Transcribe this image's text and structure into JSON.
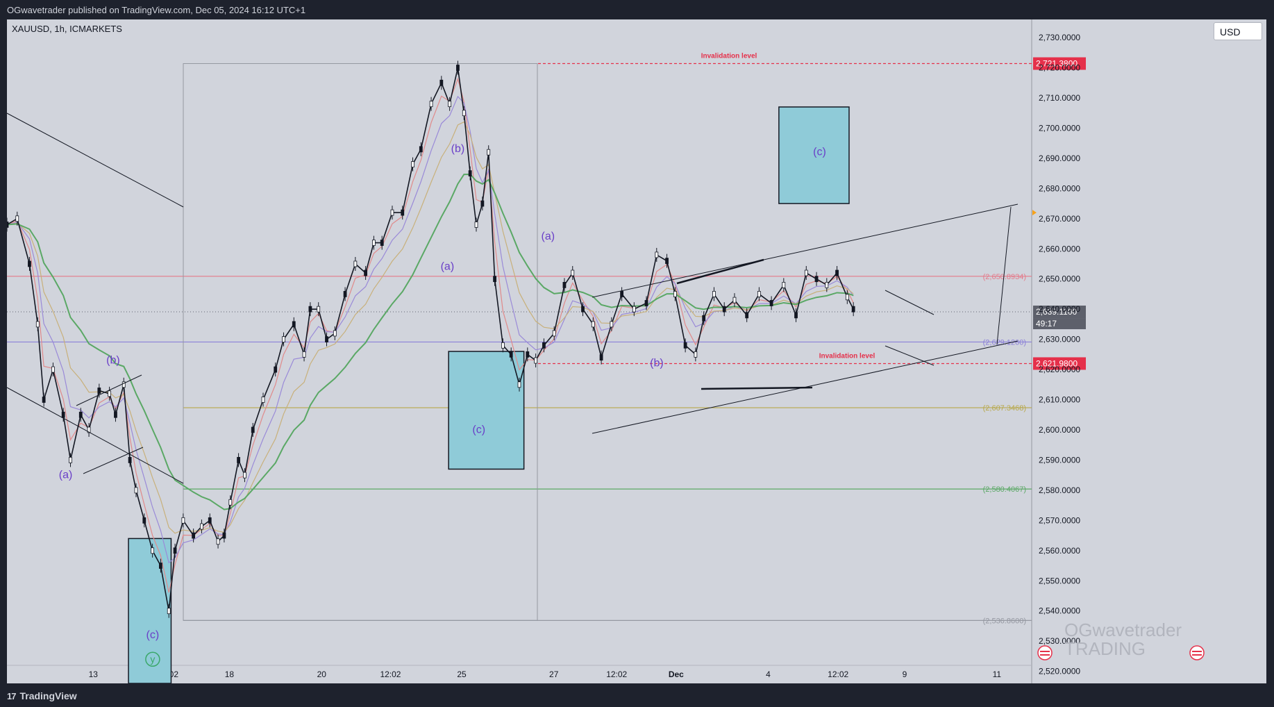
{
  "header": {
    "published_text": "OGwavetrader published on TradingView.com, Dec 05, 2024 16:12 UTC+1"
  },
  "symbol_info": "XAUUSD, 1h, ICMARKETS",
  "currency_label": "USD",
  "footer": {
    "brand": "TradingView",
    "logo_glyph": "17"
  },
  "watermark": {
    "line1": "OGwavetrader",
    "line2": "TRADING"
  },
  "colors": {
    "background": "#d1d4dc",
    "panel": "#1e222d",
    "box_fill": "#8fcbd8",
    "red": "#e5304a",
    "wave_label": "#6a3fc8",
    "ema_green": "#5aa865"
  },
  "chart_data": {
    "type": "line",
    "title": "",
    "xlabel": "",
    "ylabel": "",
    "ylim": [
      2516,
      2736
    ],
    "y_ticks": [
      2520,
      2530,
      2540,
      2550,
      2560,
      2570,
      2580,
      2590,
      2600,
      2610,
      2620,
      2630,
      2640,
      2650,
      2660,
      2670,
      2680,
      2690,
      2700,
      2710,
      2720,
      2730
    ],
    "y_tick_labels": [
      "2,520.0000",
      "2,530.0000",
      "2,540.0000",
      "2,550.0000",
      "2,560.0000",
      "2,570.0000",
      "2,580.0000",
      "2,590.0000",
      "2,600.0000",
      "2,610.0000",
      "2,620.0000",
      "2,630.0000",
      "2,640.0000",
      "2,650.0000",
      "2,660.0000",
      "2,670.0000",
      "2,680.0000",
      "2,690.0000",
      "2,700.0000",
      "2,710.0000",
      "2,720.0000",
      "2,730.0000"
    ],
    "x_tick_labels": [
      "13",
      "12:02",
      "18",
      "20",
      "12:02",
      "25",
      "27",
      "12:02",
      "Dec",
      "4",
      "12:02",
      "9",
      "11"
    ],
    "x_tick_positions": [
      0.0842,
      0.1572,
      0.2171,
      0.3071,
      0.3743,
      0.4438,
      0.5337,
      0.595,
      0.653,
      0.7429,
      0.8111,
      0.876,
      0.966
    ],
    "price_path": [
      [
        0.0,
        2668
      ],
      [
        0.01,
        2670
      ],
      [
        0.022,
        2655
      ],
      [
        0.03,
        2635
      ],
      [
        0.036,
        2610
      ],
      [
        0.045,
        2620
      ],
      [
        0.055,
        2605
      ],
      [
        0.062,
        2590
      ],
      [
        0.072,
        2605
      ],
      [
        0.08,
        2600
      ],
      [
        0.09,
        2613
      ],
      [
        0.1,
        2612
      ],
      [
        0.106,
        2605
      ],
      [
        0.114,
        2615
      ],
      [
        0.12,
        2590
      ],
      [
        0.126,
        2580
      ],
      [
        0.134,
        2570
      ],
      [
        0.142,
        2560
      ],
      [
        0.15,
        2555
      ],
      [
        0.158,
        2540
      ],
      [
        0.164,
        2560
      ],
      [
        0.172,
        2570
      ],
      [
        0.182,
        2565
      ],
      [
        0.19,
        2568
      ],
      [
        0.198,
        2570
      ],
      [
        0.206,
        2563
      ],
      [
        0.212,
        2565
      ],
      [
        0.218,
        2576
      ],
      [
        0.226,
        2590
      ],
      [
        0.232,
        2585
      ],
      [
        0.24,
        2600
      ],
      [
        0.25,
        2610
      ],
      [
        0.262,
        2620
      ],
      [
        0.27,
        2630
      ],
      [
        0.28,
        2635
      ],
      [
        0.29,
        2625
      ],
      [
        0.296,
        2640
      ],
      [
        0.304,
        2640
      ],
      [
        0.312,
        2630
      ],
      [
        0.32,
        2632
      ],
      [
        0.33,
        2645
      ],
      [
        0.34,
        2655
      ],
      [
        0.35,
        2652
      ],
      [
        0.358,
        2662
      ],
      [
        0.366,
        2662
      ],
      [
        0.376,
        2672
      ],
      [
        0.386,
        2672
      ],
      [
        0.396,
        2688
      ],
      [
        0.404,
        2693
      ],
      [
        0.414,
        2708
      ],
      [
        0.424,
        2715
      ],
      [
        0.432,
        2708
      ],
      [
        0.44,
        2720
      ],
      [
        0.446,
        2705
      ],
      [
        0.452,
        2685
      ],
      [
        0.458,
        2668
      ],
      [
        0.464,
        2675
      ],
      [
        0.47,
        2692
      ],
      [
        0.476,
        2650
      ],
      [
        0.484,
        2628
      ],
      [
        0.492,
        2625
      ],
      [
        0.5,
        2615
      ],
      [
        0.508,
        2625
      ],
      [
        0.516,
        2623
      ],
      [
        0.524,
        2628
      ],
      [
        0.534,
        2632
      ],
      [
        0.544,
        2648
      ],
      [
        0.552,
        2652
      ],
      [
        0.562,
        2640
      ],
      [
        0.572,
        2635
      ],
      [
        0.58,
        2624
      ],
      [
        0.59,
        2635
      ],
      [
        0.6,
        2645
      ],
      [
        0.612,
        2640
      ],
      [
        0.624,
        2642
      ],
      [
        0.634,
        2658
      ],
      [
        0.644,
        2656
      ],
      [
        0.652,
        2645
      ],
      [
        0.662,
        2628
      ],
      [
        0.672,
        2625
      ],
      [
        0.68,
        2637
      ],
      [
        0.69,
        2645
      ],
      [
        0.7,
        2640
      ],
      [
        0.71,
        2643
      ],
      [
        0.722,
        2638
      ],
      [
        0.734,
        2645
      ],
      [
        0.746,
        2642
      ],
      [
        0.758,
        2648
      ],
      [
        0.77,
        2638
      ],
      [
        0.78,
        2652
      ],
      [
        0.79,
        2650
      ],
      [
        0.8,
        2648
      ],
      [
        0.81,
        2652
      ],
      [
        0.82,
        2644
      ],
      [
        0.826,
        2640
      ]
    ],
    "horizontal_levels": [
      {
        "price": 2721.38,
        "label": "2,721.3800",
        "style": "dashed",
        "color": "#e5304a",
        "note": "Invalidation level"
      },
      {
        "price": 2650.8934,
        "label": "(2,650.8934)",
        "style": "solid",
        "color": "#e57a8a"
      },
      {
        "price": 2639.11,
        "label": "2,639.1100",
        "countdown": "49:17",
        "style": "dotted",
        "color": "#787b86"
      },
      {
        "price": 2629.12,
        "label": "(2,629.1200)",
        "style": "solid",
        "color": "#8a7fd8"
      },
      {
        "price": 2621.98,
        "label": "2,621.9800",
        "style": "dashed",
        "color": "#e5304a",
        "note": "Invalidation level"
      },
      {
        "price": 2607.3468,
        "label": "(2,607.3468)",
        "style": "solid",
        "color": "#b8a84a"
      },
      {
        "price": 2580.4067,
        "label": "(2,580.4067)",
        "style": "solid",
        "color": "#5aa865"
      },
      {
        "price": 2536.86,
        "label": "(2,536.8600)",
        "style": "solid",
        "color": "#9598a1"
      }
    ],
    "target_boxes": [
      {
        "x0": 0.1186,
        "x1": 0.1602,
        "y0": 2564,
        "y1": 2516
      },
      {
        "x0": 0.431,
        "x1": 0.5045,
        "y0": 2626,
        "y1": 2587
      },
      {
        "x0": 0.7533,
        "x1": 0.8218,
        "y0": 2707,
        "y1": 2675
      }
    ],
    "wave_labels": [
      {
        "text": "(a)",
        "x": 0.0573,
        "y": 2584
      },
      {
        "text": "(b)",
        "x": 0.1036,
        "y": 2622
      },
      {
        "text": "(c)",
        "x": 0.1422,
        "y": 2531
      },
      {
        "text": "y",
        "x": 0.1422,
        "y": 2524
      },
      {
        "text": "(b)",
        "x": 0.44,
        "y": 2692
      },
      {
        "text": "(a)",
        "x": 0.4298,
        "y": 2653
      },
      {
        "text": "(c)",
        "x": 0.4605,
        "y": 2599
      },
      {
        "text": "(a)",
        "x": 0.528,
        "y": 2663
      },
      {
        "text": "(b)",
        "x": 0.6341,
        "y": 2621
      },
      {
        "text": "(c)",
        "x": 0.793,
        "y": 2691
      }
    ]
  }
}
